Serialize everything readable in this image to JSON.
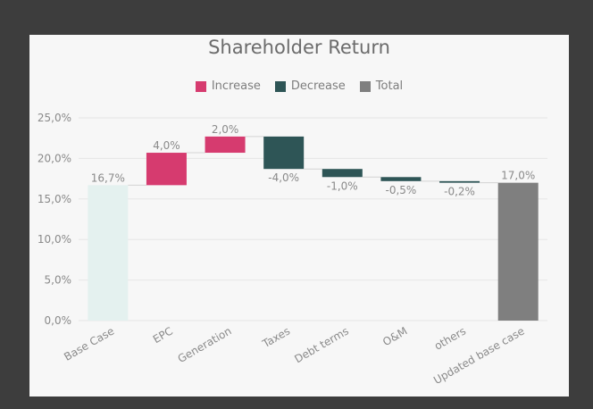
{
  "chart_data": {
    "type": "waterfall",
    "title": "Shareholder Return",
    "legend": [
      {
        "label": "Increase",
        "color": "#d63b6f"
      },
      {
        "label": "Decrease",
        "color": "#2e5556"
      },
      {
        "label": "Total",
        "color": "#7f7f7f"
      }
    ],
    "legend_position": "top",
    "y_ticks": [
      "0,0%",
      "5,0%",
      "10,0%",
      "15,0%",
      "20,0%",
      "25,0%"
    ],
    "ylim": [
      0,
      25
    ],
    "grid": true,
    "categories": [
      "Base Case",
      "EPC",
      "Generation",
      "Taxes",
      "Debt terms",
      "O&M",
      "others",
      "Updated base case"
    ],
    "bars": [
      {
        "start": 0,
        "end": 16.7,
        "kind": "base",
        "label": "16,7%"
      },
      {
        "start": 16.7,
        "end": 20.7,
        "kind": "increase",
        "label": "4,0%"
      },
      {
        "start": 20.7,
        "end": 22.7,
        "kind": "increase",
        "label": "2,0%"
      },
      {
        "start": 22.7,
        "end": 18.7,
        "kind": "decrease",
        "label": "-4,0%"
      },
      {
        "start": 18.7,
        "end": 17.7,
        "kind": "decrease",
        "label": "-1,0%"
      },
      {
        "start": 17.7,
        "end": 17.2,
        "kind": "decrease",
        "label": "-0,5%"
      },
      {
        "start": 17.2,
        "end": 17.0,
        "kind": "decrease",
        "label": "-0,2%"
      },
      {
        "start": 0,
        "end": 17.0,
        "kind": "total",
        "label": "17,0%"
      }
    ],
    "colors": {
      "base": "#e4f1ef",
      "increase": "#d63b6f",
      "decrease": "#2e5556",
      "total": "#7f7f7f",
      "grid": "#e6e6e6",
      "connector": "#d4d4d4"
    }
  }
}
